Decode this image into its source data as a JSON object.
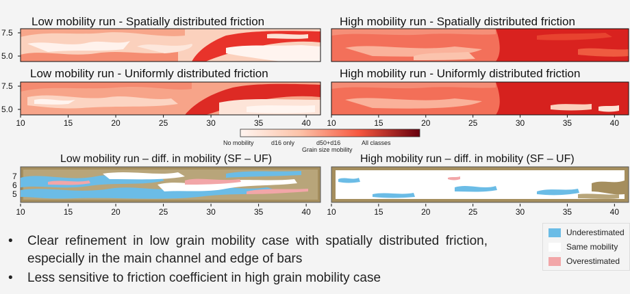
{
  "panels": {
    "low_sf": {
      "title": "Low mobility run - Spatially distributed friction"
    },
    "high_sf": {
      "title": "High mobility run - Spatially distributed friction"
    },
    "low_uf": {
      "title": "Low mobility run - Uniformly distributed friction"
    },
    "high_uf": {
      "title": "High mobility run - Uniformly distributed friction"
    },
    "low_diff": {
      "title": "Low mobility run – diff. in mobility (SF – UF)"
    },
    "high_diff": {
      "title": "High mobility run – diff. in mobility (SF – UF)"
    }
  },
  "axes": {
    "x_ticks": [
      "10",
      "15",
      "20",
      "25",
      "30",
      "35",
      "40"
    ],
    "x_range": [
      10,
      41.5
    ],
    "y_ticks_top": [
      "7.5",
      "5.0"
    ],
    "y_ticks_diff": [
      "7",
      "6",
      "5"
    ]
  },
  "colorbar": {
    "labels": [
      "No mobility",
      "d16 only",
      "d50+d16",
      "All classes"
    ],
    "title": "Grain size mobility",
    "colors": [
      "#fff5f0",
      "#fcc3a9",
      "#f6573f",
      "#67000d"
    ]
  },
  "legend": {
    "items": [
      {
        "label": "Underestimated",
        "color": "#6bbce6"
      },
      {
        "label": "Same mobility",
        "color": "#ffffff"
      },
      {
        "label": "Overestimated",
        "color": "#f2a6a8"
      }
    ]
  },
  "bullets": [
    "Clear refinement in low grain mobility case with spatially distributed friction, especially in the main channel and edge of bars",
    "Less sensitive to friction coefficient in high grain mobility case"
  ]
}
